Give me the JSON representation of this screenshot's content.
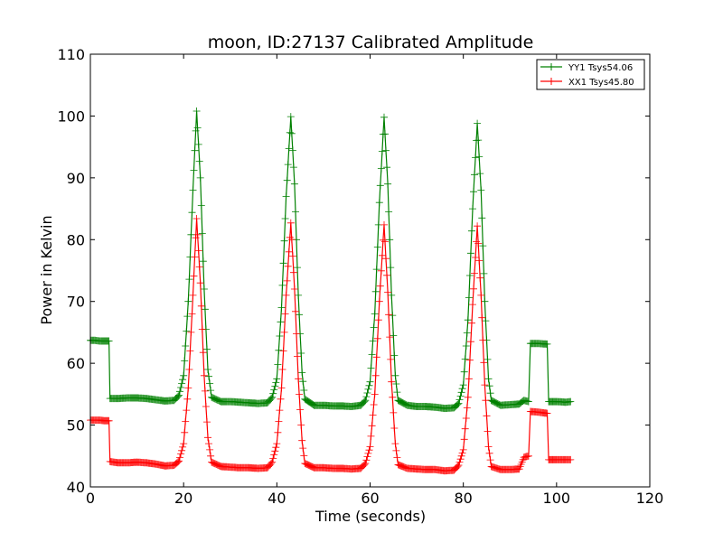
{
  "chart_data": {
    "type": "line",
    "title": "moon, ID:27137 Calibrated Amplitude",
    "xlabel": "Time (seconds)",
    "ylabel": "Power in Kelvin",
    "xlim": [
      0,
      120
    ],
    "ylim": [
      40,
      110
    ],
    "xticks": [
      "0",
      "20",
      "40",
      "60",
      "80",
      "100",
      "120"
    ],
    "yticks": [
      "40",
      "50",
      "60",
      "70",
      "80",
      "90",
      "100",
      "110"
    ],
    "grid": false,
    "legend_position": "top-right",
    "series": [
      {
        "name": "YY1 Tsys54.06",
        "color": "#008000",
        "marker": "plus",
        "points": [
          [
            0,
            63.7
          ],
          [
            1,
            63.7
          ],
          [
            2,
            63.6
          ],
          [
            3,
            63.6
          ],
          [
            4,
            63.6
          ],
          [
            4.2,
            54.3
          ],
          [
            6,
            54.3
          ],
          [
            8,
            54.4
          ],
          [
            10,
            54.4
          ],
          [
            12,
            54.3
          ],
          [
            14,
            54.1
          ],
          [
            16,
            53.9
          ],
          [
            18,
            54.0
          ],
          [
            19,
            54.8
          ],
          [
            20,
            58.0
          ],
          [
            21,
            70.0
          ],
          [
            22,
            88.0
          ],
          [
            22.8,
            100.8
          ],
          [
            23.6,
            90.0
          ],
          [
            24.4,
            72.0
          ],
          [
            25.2,
            59.0
          ],
          [
            26,
            54.5
          ],
          [
            28,
            53.8
          ],
          [
            30,
            53.8
          ],
          [
            32,
            53.7
          ],
          [
            34,
            53.6
          ],
          [
            36,
            53.5
          ],
          [
            38,
            53.6
          ],
          [
            39,
            54.5
          ],
          [
            40,
            57.5
          ],
          [
            41,
            69.0
          ],
          [
            42,
            87.0
          ],
          [
            43,
            99.9
          ],
          [
            43.8,
            89.0
          ],
          [
            44.6,
            71.0
          ],
          [
            45.4,
            58.5
          ],
          [
            46,
            54.2
          ],
          [
            48,
            53.2
          ],
          [
            50,
            53.2
          ],
          [
            52,
            53.1
          ],
          [
            54,
            53.1
          ],
          [
            56,
            53.0
          ],
          [
            58,
            53.2
          ],
          [
            59,
            54.0
          ],
          [
            60,
            57.0
          ],
          [
            61,
            68.0
          ],
          [
            62,
            86.0
          ],
          [
            63,
            99.8
          ],
          [
            63.8,
            89.0
          ],
          [
            64.6,
            71.0
          ],
          [
            65.4,
            58.0
          ],
          [
            66,
            54.0
          ],
          [
            68,
            53.2
          ],
          [
            70,
            53.0
          ],
          [
            72,
            53.0
          ],
          [
            74,
            52.9
          ],
          [
            76,
            52.7
          ],
          [
            78,
            52.8
          ],
          [
            79,
            53.5
          ],
          [
            80,
            56.5
          ],
          [
            81,
            67.0
          ],
          [
            82,
            85.0
          ],
          [
            83,
            98.8
          ],
          [
            83.8,
            88.0
          ],
          [
            84.6,
            70.0
          ],
          [
            85.4,
            57.5
          ],
          [
            86,
            54.0
          ],
          [
            88,
            53.2
          ],
          [
            90,
            53.3
          ],
          [
            92,
            53.4
          ],
          [
            93,
            54.0
          ],
          [
            94,
            53.8
          ],
          [
            94.4,
            63.2
          ],
          [
            96,
            63.2
          ],
          [
            98,
            63.1
          ],
          [
            98.3,
            53.8
          ],
          [
            100,
            53.8
          ],
          [
            102,
            53.7
          ],
          [
            103,
            53.8
          ]
        ]
      },
      {
        "name": "XX1 Tsys45.80",
        "color": "#ff0000",
        "marker": "plus",
        "points": [
          [
            0,
            50.8
          ],
          [
            1,
            50.8
          ],
          [
            2,
            50.8
          ],
          [
            3,
            50.7
          ],
          [
            4,
            50.7
          ],
          [
            4.2,
            44.1
          ],
          [
            6,
            43.9
          ],
          [
            8,
            43.9
          ],
          [
            10,
            44.0
          ],
          [
            12,
            43.9
          ],
          [
            14,
            43.7
          ],
          [
            16,
            43.4
          ],
          [
            18,
            43.5
          ],
          [
            19,
            44.2
          ],
          [
            20,
            47.0
          ],
          [
            21,
            56.0
          ],
          [
            22,
            71.0
          ],
          [
            22.8,
            83.4
          ],
          [
            23.6,
            73.0
          ],
          [
            24.4,
            58.0
          ],
          [
            25.2,
            48.0
          ],
          [
            26,
            44.0
          ],
          [
            28,
            43.3
          ],
          [
            30,
            43.2
          ],
          [
            32,
            43.1
          ],
          [
            34,
            43.1
          ],
          [
            36,
            43.0
          ],
          [
            38,
            43.1
          ],
          [
            39,
            44.0
          ],
          [
            40,
            47.0
          ],
          [
            41,
            56.0
          ],
          [
            42,
            71.0
          ],
          [
            43,
            82.7
          ],
          [
            43.8,
            72.0
          ],
          [
            44.6,
            57.5
          ],
          [
            45.4,
            47.5
          ],
          [
            46,
            43.8
          ],
          [
            48,
            43.1
          ],
          [
            50,
            43.1
          ],
          [
            52,
            43.0
          ],
          [
            54,
            43.0
          ],
          [
            56,
            42.9
          ],
          [
            58,
            43.0
          ],
          [
            59,
            43.8
          ],
          [
            60,
            46.5
          ],
          [
            61,
            55.0
          ],
          [
            62,
            70.0
          ],
          [
            63,
            82.4
          ],
          [
            63.8,
            71.5
          ],
          [
            64.6,
            57.0
          ],
          [
            65.4,
            47.0
          ],
          [
            66,
            43.6
          ],
          [
            68,
            43.0
          ],
          [
            70,
            42.9
          ],
          [
            72,
            42.8
          ],
          [
            74,
            42.8
          ],
          [
            76,
            42.6
          ],
          [
            78,
            42.7
          ],
          [
            79,
            43.5
          ],
          [
            80,
            46.0
          ],
          [
            81,
            54.5
          ],
          [
            82,
            69.5
          ],
          [
            83,
            82.2
          ],
          [
            83.8,
            71.0
          ],
          [
            84.6,
            56.5
          ],
          [
            85.4,
            46.5
          ],
          [
            86,
            43.3
          ],
          [
            88,
            42.8
          ],
          [
            90,
            42.8
          ],
          [
            92,
            42.9
          ],
          [
            93,
            44.8
          ],
          [
            94,
            45.0
          ],
          [
            94.4,
            52.2
          ],
          [
            96,
            52.1
          ],
          [
            98,
            51.9
          ],
          [
            98.3,
            44.4
          ],
          [
            100,
            44.4
          ],
          [
            102,
            44.4
          ],
          [
            103,
            44.4
          ]
        ]
      }
    ]
  }
}
